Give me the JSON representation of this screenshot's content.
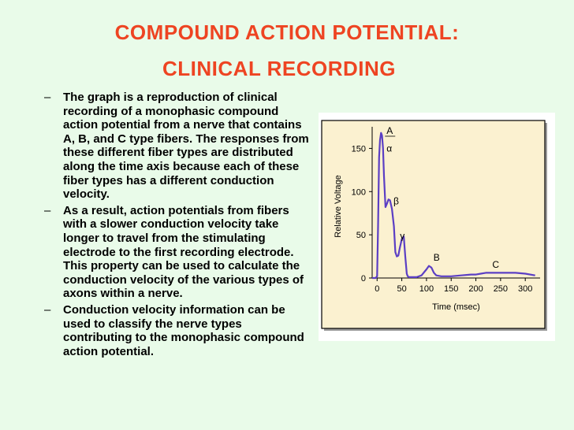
{
  "slide": {
    "title_line1": "COMPOUND ACTION POTENTIAL:",
    "title_line2": "CLINICAL RECORDING",
    "bullet_marker": "–",
    "bullets": [
      "The graph is a reproduction of clinical recording of a monophasic compound action potential from a nerve that contains A, B, and C type fibers. The responses from these different fiber types are distributed along the time axis because each of these fiber types has a different conduction velocity.",
      "As a result, action potentials from fibers with a slower conduction velocity take longer to travel from the stimulating electrode to the first recording electrode. This property can be used to calculate the conduction velocity of the various types of axons within a nerve.",
      "Conduction velocity information can be used to classify the nerve types contributing to the monophasic compound action potential."
    ]
  },
  "chart_data": {
    "type": "line",
    "xlabel": "Time (msec)",
    "ylabel": "Relative Voltage",
    "xlim": [
      -10,
      330
    ],
    "ylim": [
      0,
      175
    ],
    "xticks": [
      0,
      50,
      100,
      150,
      200,
      250,
      300
    ],
    "yticks": [
      0,
      50,
      100,
      150
    ],
    "grid": false,
    "colors": {
      "line": "#5b3fc4",
      "background": "#fbf1d0",
      "frame": "#000000"
    },
    "series": [
      {
        "x": [
          -10,
          -3,
          0,
          2,
          4,
          6,
          8,
          10,
          12,
          14,
          17,
          20,
          23,
          26,
          30,
          34,
          37,
          40,
          43,
          46,
          50,
          54,
          57,
          60,
          62,
          65,
          70,
          80,
          90,
          100,
          105,
          110,
          115,
          120,
          130,
          150,
          170,
          190,
          200,
          210,
          220,
          230,
          240,
          260,
          280,
          300,
          320
        ],
        "y": [
          0,
          0,
          2,
          60,
          140,
          160,
          168,
          165,
          150,
          118,
          82,
          86,
          91,
          90,
          80,
          60,
          30,
          25,
          26,
          35,
          45,
          48,
          25,
          5,
          2,
          1,
          1,
          1,
          3,
          10,
          14,
          12,
          6,
          3,
          2,
          2,
          3,
          4,
          4,
          5,
          6,
          6,
          6,
          6,
          6,
          5,
          3
        ]
      }
    ],
    "annotations": [
      {
        "text": "A",
        "x": 8,
        "y": 165,
        "role": "over"
      },
      {
        "text": "α",
        "x": 8,
        "y": 150,
        "role": "under"
      },
      {
        "text": "β",
        "x": 22,
        "y": 85
      },
      {
        "text": "γ",
        "x": 35,
        "y": 45
      },
      {
        "text": "B",
        "x": 103,
        "y": 20
      },
      {
        "text": "C",
        "x": 222,
        "y": 12
      }
    ]
  }
}
